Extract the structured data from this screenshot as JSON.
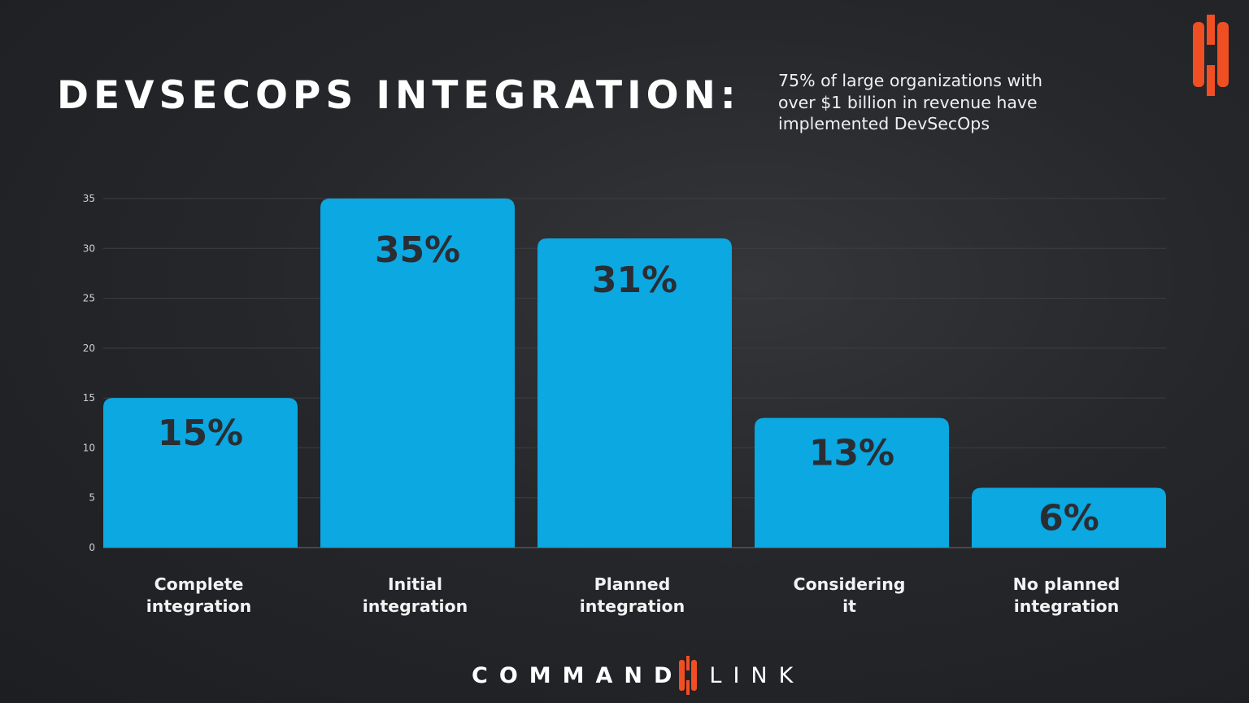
{
  "header": {
    "title": "DEVSECOPS INTEGRATION:",
    "subtitle": "75% of large organizations with over $1 billion in revenue have implemented DevSecOps"
  },
  "brand": {
    "word1": "COMMAND",
    "word2": "LINK",
    "logo_color": "#f04e23"
  },
  "chart_data": {
    "type": "bar",
    "categories": [
      "Complete integration",
      "Initial integration",
      "Planned integration",
      "Considering it",
      "No planned integration"
    ],
    "values": [
      15,
      35,
      31,
      13,
      6
    ],
    "data_labels": [
      "15%",
      "35%",
      "31%",
      "13%",
      "6%"
    ],
    "ylim": [
      0,
      35
    ],
    "yticks": [
      0,
      5,
      10,
      15,
      20,
      25,
      30,
      35
    ],
    "grid": true,
    "bar_color": "#0ba8e1",
    "label_color": "#2a2d33"
  }
}
